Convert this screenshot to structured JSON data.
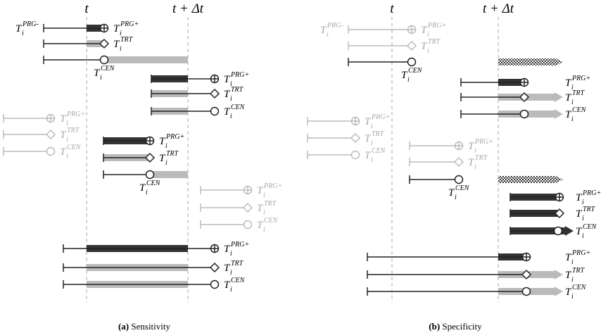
{
  "symbol": "T",
  "index": "i",
  "panels": [
    {
      "t": "t",
      "t_plus": "t + Δt",
      "caption_tag": "(a)",
      "caption": "Sensitivity",
      "left_label": "PRG-",
      "rows": [
        "PRG+",
        "TRT",
        "CEN",
        "PRG+",
        "TRT",
        "CEN",
        "PRG+",
        "TRT",
        "CEN",
        "PRG+",
        "TRT",
        "CEN",
        "PRG+",
        "TRT",
        "CEN",
        "PRG+",
        "TRT",
        "CEN"
      ]
    },
    {
      "t": "t",
      "t_plus": "t + Δt",
      "caption_tag": "(b)",
      "caption": "Specificity",
      "left_label": "PRG-",
      "rows": [
        "PRG+",
        "TRT",
        "CEN",
        "PRG+",
        "TRT",
        "CEN",
        "PRG+",
        "TRT",
        "CEN",
        "PRG+",
        "TRT",
        "CEN",
        "PRG+",
        "TRT",
        "CEN",
        "PRG+",
        "TRT",
        "CEN"
      ]
    }
  ]
}
